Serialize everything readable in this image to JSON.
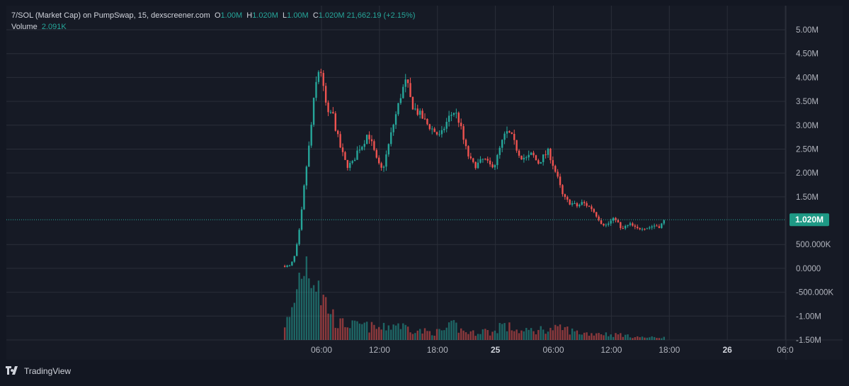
{
  "legend": {
    "symbol": "7/SOL (Market Cap) on PumpSwap, 15, dexscreener.com",
    "o_label": "O",
    "o_value": "1.00M",
    "h_label": "H",
    "h_value": "1.020M",
    "l_label": "L",
    "l_value": "1.00M",
    "c_label": "C",
    "c_value": "1.020M",
    "change": "21,662.19 (+2.15%)",
    "volume_label": "Volume",
    "volume_value": "2.091K"
  },
  "footer": {
    "brand": "TradingView"
  },
  "colors": {
    "up": "#26a69a",
    "down": "#ef5350",
    "background": "#131722",
    "grid": "#2a2e39",
    "text": "#b2b5be",
    "last_price_badge": "#1e9985"
  },
  "chart_data": {
    "type": "candlestick",
    "y_axis": {
      "ticks": [
        "5.00M",
        "4.50M",
        "4.00M",
        "3.50M",
        "3.00M",
        "2.50M",
        "2.00M",
        "1.50M",
        "500.000K",
        "0.0000",
        "-500.000K",
        "-1.00M",
        "-1.50M"
      ],
      "tick_values": [
        5.0,
        4.5,
        4.0,
        3.5,
        3.0,
        2.5,
        2.0,
        1.5,
        0.5,
        0.0,
        -0.5,
        -1.0,
        -1.5
      ],
      "unit": "M",
      "range": [
        -1.5,
        5.0
      ]
    },
    "x_axis": {
      "ticks": [
        "06:00",
        "12:00",
        "18:00",
        "25",
        "06:00",
        "12:00",
        "18:00",
        "26",
        "06:0"
      ],
      "tick_hours": [
        6,
        12,
        18,
        24,
        30,
        36,
        42,
        48,
        54
      ],
      "range_hours": [
        0.5,
        56.2
      ]
    },
    "last_price": {
      "label": "1.020M",
      "value": 1.02
    },
    "price_path": [
      [
        2.2,
        0.05
      ],
      [
        2.8,
        0.05
      ],
      [
        3.3,
        0.3
      ],
      [
        3.8,
        0.9
      ],
      [
        4.3,
        1.9
      ],
      [
        4.8,
        2.7
      ],
      [
        5.2,
        3.5
      ],
      [
        5.6,
        4.1
      ],
      [
        5.9,
        4.2
      ],
      [
        6.3,
        3.6
      ],
      [
        6.7,
        3.2
      ],
      [
        7.1,
        3.3
      ],
      [
        7.5,
        2.9
      ],
      [
        8.0,
        2.5
      ],
      [
        8.6,
        2.15
      ],
      [
        9.2,
        2.2
      ],
      [
        9.8,
        2.5
      ],
      [
        10.3,
        2.6
      ],
      [
        10.8,
        2.85
      ],
      [
        11.3,
        2.55
      ],
      [
        11.8,
        2.2
      ],
      [
        12.3,
        2.05
      ],
      [
        12.8,
        2.45
      ],
      [
        13.3,
        2.9
      ],
      [
        13.8,
        3.3
      ],
      [
        14.3,
        3.7
      ],
      [
        14.8,
        3.95
      ],
      [
        15.3,
        3.45
      ],
      [
        15.8,
        3.3
      ],
      [
        16.3,
        3.2
      ],
      [
        16.8,
        3.05
      ],
      [
        17.3,
        2.95
      ],
      [
        17.8,
        2.85
      ],
      [
        18.3,
        2.75
      ],
      [
        18.8,
        3.0
      ],
      [
        19.3,
        3.2
      ],
      [
        19.8,
        3.3
      ],
      [
        20.3,
        3.05
      ],
      [
        20.8,
        2.6
      ],
      [
        21.3,
        2.3
      ],
      [
        21.8,
        2.15
      ],
      [
        22.3,
        2.2
      ],
      [
        22.8,
        2.3
      ],
      [
        23.4,
        2.15
      ],
      [
        24.0,
        2.2
      ],
      [
        24.6,
        2.6
      ],
      [
        25.1,
        2.85
      ],
      [
        25.6,
        2.8
      ],
      [
        26.1,
        2.55
      ],
      [
        26.6,
        2.35
      ],
      [
        27.2,
        2.3
      ],
      [
        27.8,
        2.4
      ],
      [
        28.4,
        2.2
      ],
      [
        29.0,
        2.35
      ],
      [
        29.5,
        2.45
      ],
      [
        30.0,
        2.15
      ],
      [
        30.5,
        1.85
      ],
      [
        31.0,
        1.5
      ],
      [
        31.5,
        1.4
      ],
      [
        32.0,
        1.35
      ],
      [
        32.5,
        1.3
      ],
      [
        33.0,
        1.38
      ],
      [
        33.5,
        1.32
      ],
      [
        34.0,
        1.25
      ],
      [
        34.5,
        1.1
      ],
      [
        35.0,
        0.95
      ],
      [
        35.5,
        0.9
      ],
      [
        36.0,
        1.0
      ],
      [
        36.5,
        1.05
      ],
      [
        37.0,
        0.8
      ],
      [
        37.5,
        0.88
      ],
      [
        38.0,
        0.92
      ],
      [
        38.6,
        0.82
      ],
      [
        39.2,
        0.86
      ],
      [
        39.8,
        0.85
      ],
      [
        40.4,
        0.9
      ],
      [
        41.0,
        0.88
      ],
      [
        41.6,
        1.02
      ]
    ],
    "volume_profile": [
      [
        2.2,
        0.2
      ],
      [
        2.8,
        0.25
      ],
      [
        3.3,
        0.5
      ],
      [
        3.8,
        0.8
      ],
      [
        4.3,
        0.95
      ],
      [
        4.8,
        0.9
      ],
      [
        5.2,
        0.75
      ],
      [
        5.6,
        0.85
      ],
      [
        5.9,
        0.55
      ],
      [
        6.3,
        0.45
      ],
      [
        6.7,
        0.4
      ],
      [
        7.1,
        0.3
      ],
      [
        7.5,
        0.22
      ],
      [
        8.0,
        0.18
      ],
      [
        8.6,
        0.2
      ],
      [
        9.2,
        0.17
      ],
      [
        9.8,
        0.16
      ],
      [
        10.3,
        0.18
      ],
      [
        10.8,
        0.15
      ],
      [
        11.3,
        0.15
      ],
      [
        11.8,
        0.14
      ],
      [
        12.3,
        0.13
      ],
      [
        12.8,
        0.16
      ],
      [
        13.3,
        0.17
      ],
      [
        13.8,
        0.2
      ],
      [
        14.3,
        0.16
      ],
      [
        14.8,
        0.15
      ],
      [
        15.3,
        0.13
      ],
      [
        15.8,
        0.12
      ],
      [
        16.3,
        0.1
      ],
      [
        16.8,
        0.1
      ],
      [
        17.3,
        0.09
      ],
      [
        17.8,
        0.09
      ],
      [
        18.3,
        0.1
      ],
      [
        18.8,
        0.12
      ],
      [
        19.3,
        0.15
      ],
      [
        19.8,
        0.18
      ],
      [
        20.3,
        0.12
      ],
      [
        20.8,
        0.1
      ],
      [
        21.3,
        0.09
      ],
      [
        21.8,
        0.08
      ],
      [
        22.3,
        0.1
      ],
      [
        22.8,
        0.12
      ],
      [
        23.4,
        0.08
      ],
      [
        24.0,
        0.1
      ],
      [
        24.6,
        0.2
      ],
      [
        25.1,
        0.14
      ],
      [
        25.6,
        0.15
      ],
      [
        26.1,
        0.12
      ],
      [
        26.6,
        0.1
      ],
      [
        27.2,
        0.1
      ],
      [
        27.8,
        0.12
      ],
      [
        28.4,
        0.1
      ],
      [
        29.0,
        0.15
      ],
      [
        29.5,
        0.1
      ],
      [
        30.0,
        0.14
      ],
      [
        30.5,
        0.12
      ],
      [
        31.0,
        0.14
      ],
      [
        31.5,
        0.12
      ],
      [
        32.0,
        0.1
      ],
      [
        32.5,
        0.09
      ],
      [
        33.0,
        0.08
      ],
      [
        33.5,
        0.08
      ],
      [
        34.0,
        0.07
      ],
      [
        34.5,
        0.09
      ],
      [
        35.0,
        0.08
      ],
      [
        35.5,
        0.07
      ],
      [
        36.0,
        0.06
      ],
      [
        36.5,
        0.06
      ],
      [
        37.0,
        0.07
      ],
      [
        37.5,
        0.05
      ],
      [
        38.0,
        0.04
      ],
      [
        38.6,
        0.04
      ],
      [
        39.2,
        0.03
      ],
      [
        39.8,
        0.03
      ],
      [
        40.4,
        0.03
      ],
      [
        41.0,
        0.03
      ],
      [
        41.6,
        0.03
      ]
    ]
  }
}
